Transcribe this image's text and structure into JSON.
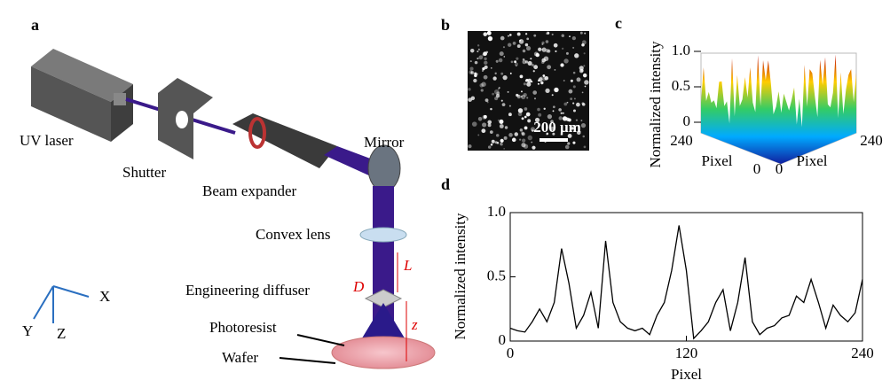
{
  "diagram": {
    "panel_label": "a",
    "uv_laser": "UV laser",
    "shutter": "Shutter",
    "beam_expander": "Beam expander",
    "mirror": "Mirror",
    "convex_lens": "Convex lens",
    "diffuser": "Engineering diffuser",
    "photoresist": "Photoresist",
    "wafer": "Wafer",
    "d_label": "D",
    "l_label": "L",
    "z_label": "z",
    "axis_x": "X",
    "axis_y": "Y",
    "axis_z": "Z"
  },
  "image": {
    "panel_label": "b",
    "scale_bar": "200 μm"
  },
  "chart_data": [
    {
      "type": "surface",
      "panel_label": "c",
      "z_label": "Normalized  intensity",
      "zticks": [
        {
          "value": 1,
          "label": "1.0"
        },
        0.5,
        0
      ],
      "x_label": "Pixel",
      "xticks": [
        240,
        0
      ],
      "y_label": "Pixel",
      "yticks": [
        0,
        240
      ]
    },
    {
      "type": "line",
      "panel_label": "d",
      "y_label": "Normalized  intensity",
      "x_label": "Pixel",
      "x": [
        0,
        5,
        10,
        15,
        20,
        25,
        30,
        35,
        40,
        45,
        50,
        55,
        60,
        65,
        70,
        75,
        80,
        85,
        90,
        95,
        100,
        105,
        110,
        115,
        120,
        125,
        130,
        135,
        140,
        145,
        150,
        155,
        160,
        165,
        170,
        175,
        180,
        185,
        190,
        195,
        200,
        205,
        210,
        215,
        220,
        225,
        230,
        235,
        240
      ],
      "values": [
        0.1,
        0.08,
        0.07,
        0.15,
        0.25,
        0.15,
        0.3,
        0.72,
        0.45,
        0.1,
        0.2,
        0.38,
        0.1,
        0.78,
        0.3,
        0.15,
        0.1,
        0.08,
        0.1,
        0.05,
        0.2,
        0.3,
        0.55,
        0.9,
        0.55,
        0.02,
        0.08,
        0.15,
        0.3,
        0.4,
        0.08,
        0.3,
        0.65,
        0.15,
        0.05,
        0.1,
        0.12,
        0.18,
        0.2,
        0.35,
        0.3,
        0.48,
        0.3,
        0.1,
        0.28,
        0.2,
        0.15,
        0.22,
        0.48
      ],
      "color": "#000000",
      "xlim": [
        0,
        240
      ],
      "xticks": [
        0,
        120,
        240
      ],
      "ylim": [
        0,
        1
      ],
      "yticks": [
        0,
        0.5,
        {
          "value": 1,
          "label": "1.0"
        }
      ]
    }
  ]
}
